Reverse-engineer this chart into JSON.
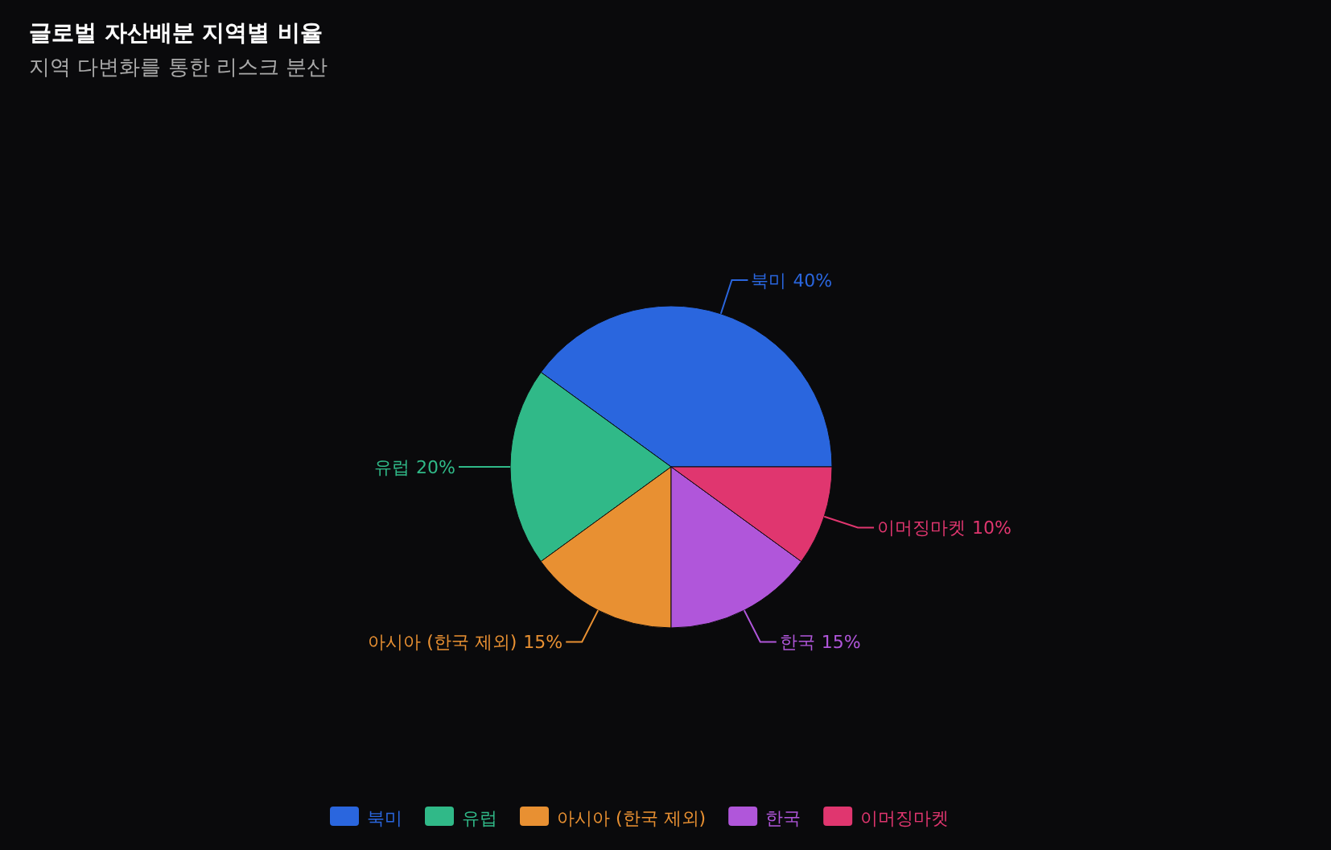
{
  "chart_data": {
    "type": "pie",
    "title": "글로벌 자산배분 지역별 비율",
    "subtitle": "지역 다변화를 통한 리스크 분산",
    "categories": [
      "북미",
      "유럽",
      "아시아 (한국 제외)",
      "한국",
      "이머징마켓"
    ],
    "values": [
      40,
      20,
      15,
      15,
      10
    ],
    "colors": [
      "#2a66de",
      "#30b988",
      "#e89032",
      "#b056da",
      "#e0366f"
    ],
    "value_labels": [
      "40%",
      "20%",
      "15%",
      "15%",
      "10%"
    ],
    "legend": "bottom"
  }
}
